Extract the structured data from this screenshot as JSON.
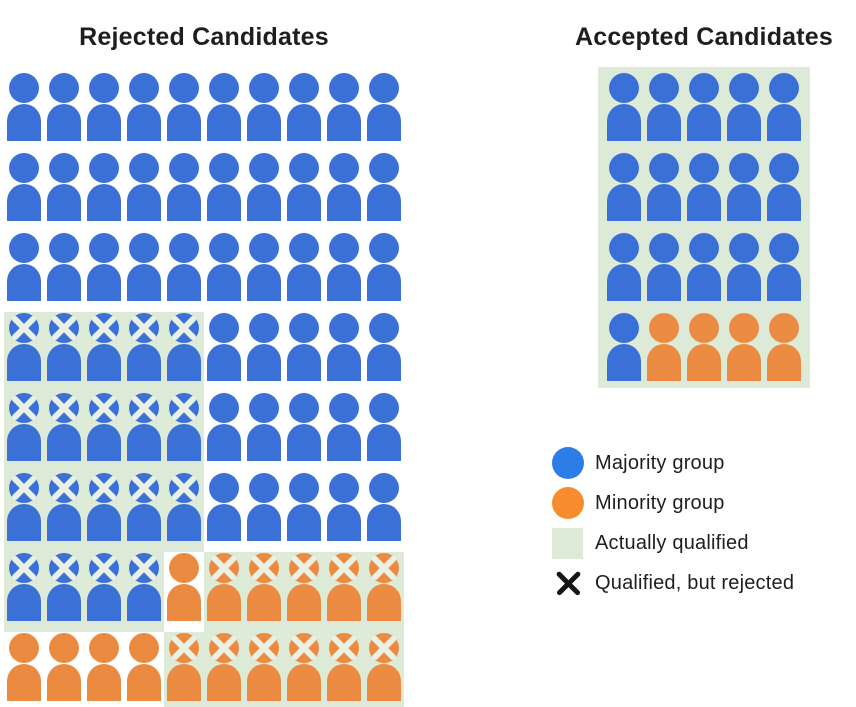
{
  "titles": {
    "rejected": "Rejected Candidates",
    "accepted": "Accepted Candidates"
  },
  "colors": {
    "background": "#ffffff",
    "majority_icon": "#3B70D6",
    "minority_icon": "#EB8B41",
    "legend_majority": "#2D7DE9",
    "legend_minority": "#F78C2E",
    "qualified_bg": "#DDEAD7",
    "x_on_icon": "#E9F1E5",
    "legend_x": "#151515",
    "text": "#1E1E1E"
  },
  "cell_token_key": {
    "B": "majority group (blue person)",
    "O": "minority group (orange person)",
    "Q": "actually qualified (green background)",
    "X": "qualified, but rejected (x mark on head)"
  },
  "rejected_grid": {
    "columns": 10,
    "rows": 8,
    "cells": [
      [
        "B",
        "B",
        "B",
        "B",
        "B",
        "B",
        "B",
        "B",
        "B",
        "B"
      ],
      [
        "B",
        "B",
        "B",
        "B",
        "B",
        "B",
        "B",
        "B",
        "B",
        "B"
      ],
      [
        "B",
        "B",
        "B",
        "B",
        "B",
        "B",
        "B",
        "B",
        "B",
        "B"
      ],
      [
        "BQX",
        "BQX",
        "BQX",
        "BQX",
        "BQX",
        "B",
        "B",
        "B",
        "B",
        "B"
      ],
      [
        "BQX",
        "BQX",
        "BQX",
        "BQX",
        "BQX",
        "B",
        "B",
        "B",
        "B",
        "B"
      ],
      [
        "BQX",
        "BQX",
        "BQX",
        "BQX",
        "BQX",
        "B",
        "B",
        "B",
        "B",
        "B"
      ],
      [
        "BQX",
        "BQX",
        "BQX",
        "BQX",
        "O",
        "OQX",
        "OQX",
        "OQX",
        "OQX",
        "OQX"
      ],
      [
        "O",
        "O",
        "O",
        "O",
        "OQX",
        "OQX",
        "OQX",
        "OQX",
        "OQX",
        "OQX"
      ]
    ],
    "counts": {
      "total": 80,
      "majority": 64,
      "minority": 16,
      "majority_qualified_but_rejected": 19,
      "minority_qualified_but_rejected": 11
    }
  },
  "accepted_grid": {
    "columns": 5,
    "rows": 4,
    "cells": [
      [
        "BQ",
        "BQ",
        "BQ",
        "BQ",
        "BQ"
      ],
      [
        "BQ",
        "BQ",
        "BQ",
        "BQ",
        "BQ"
      ],
      [
        "BQ",
        "BQ",
        "BQ",
        "BQ",
        "BQ"
      ],
      [
        "BQ",
        "OQ",
        "OQ",
        "OQ",
        "OQ"
      ]
    ],
    "counts": {
      "total": 20,
      "majority": 16,
      "minority": 4
    }
  },
  "legend": {
    "items": [
      {
        "id": "majority",
        "swatch": "blue-circle",
        "label": "Majority group"
      },
      {
        "id": "minority",
        "swatch": "orange-circle",
        "label": "Minority group"
      },
      {
        "id": "qualified",
        "swatch": "green-square",
        "label": "Actually qualified"
      },
      {
        "id": "rejected-x",
        "swatch": "x-mark",
        "label": "Qualified, but rejected"
      }
    ]
  }
}
